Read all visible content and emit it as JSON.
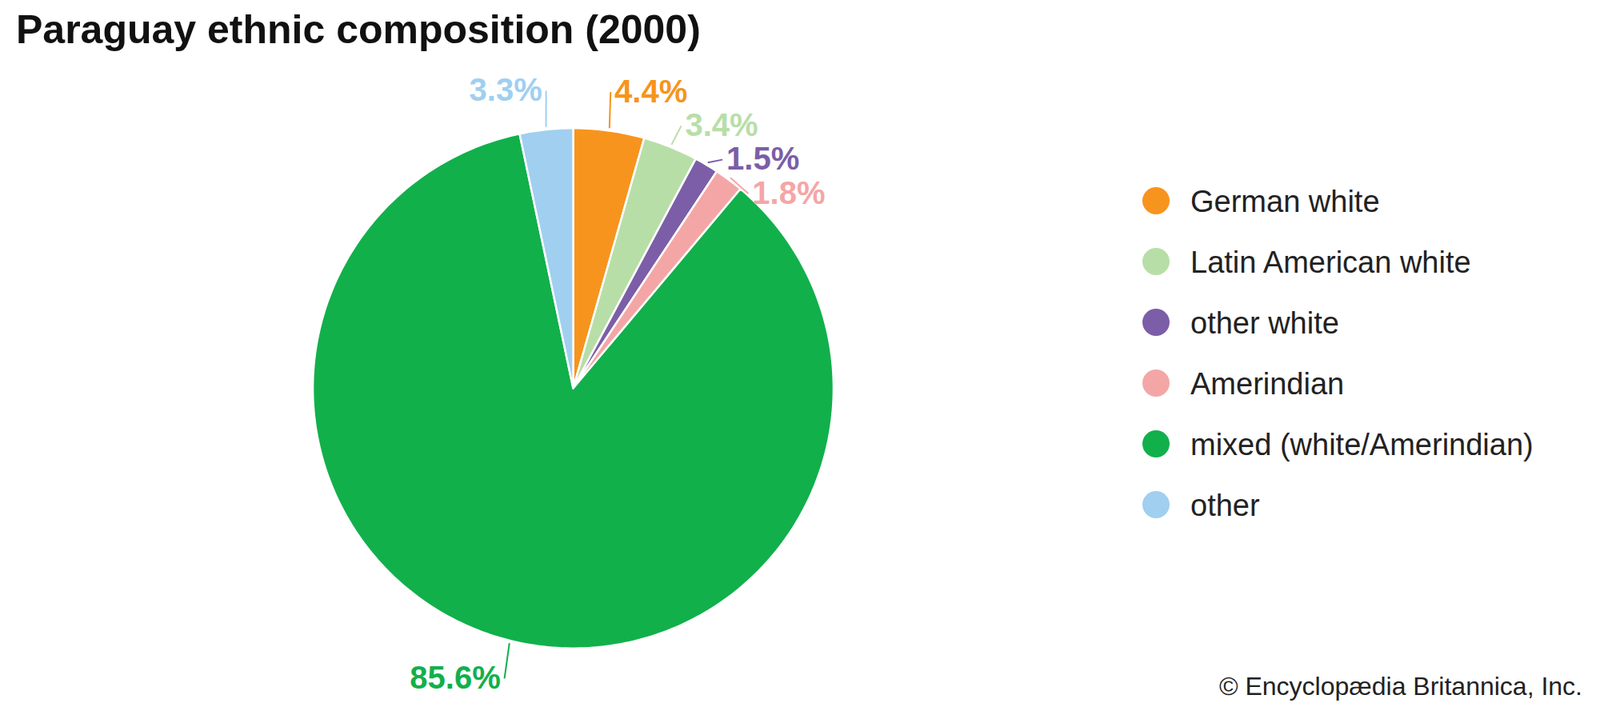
{
  "chart_data": {
    "type": "pie",
    "title": "Paraguay ethnic composition (2000)",
    "categories": [
      "German white",
      "Latin American white",
      "other white",
      "Amerindian",
      "mixed (white/Amerindian)",
      "other"
    ],
    "values": [
      4.4,
      3.4,
      1.5,
      1.8,
      85.6,
      3.3
    ],
    "value_labels": [
      "4.4%",
      "3.4%",
      "1.5%",
      "1.8%",
      "85.6%",
      "3.3%"
    ],
    "colors": [
      "#f7941d",
      "#b8dea8",
      "#7b5ea7",
      "#f4a6a6",
      "#11b04b",
      "#a0cff0"
    ],
    "data_labels": true,
    "legend": "right",
    "source": "© Encyclopædia Britannica, Inc."
  }
}
